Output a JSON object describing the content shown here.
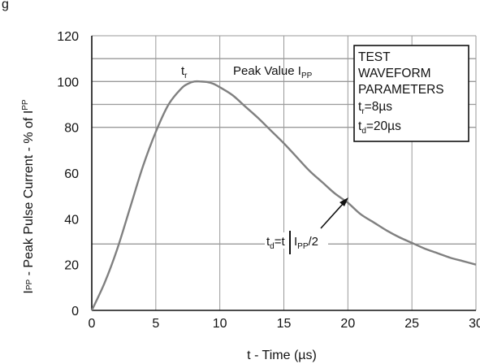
{
  "chart_data": {
    "type": "line",
    "title": "g",
    "xlabel": "t - Time (µs)",
    "ylabel": "IPP - Peak Pulse Current - % of IPP",
    "xlim": [
      0,
      30
    ],
    "ylim": [
      0,
      120
    ],
    "x_ticks": [
      "0",
      "5",
      "10",
      "15",
      "20",
      "25",
      "30"
    ],
    "y_ticks": [
      "0",
      "20",
      "40",
      "60",
      "80",
      "100",
      "120"
    ],
    "grid": true,
    "series": [
      {
        "name": "",
        "color": "#808080",
        "x": [
          0,
          1,
          2,
          3,
          4,
          5,
          6,
          7,
          7.5,
          8,
          8.5,
          9,
          9.5,
          10,
          11,
          12,
          13,
          14,
          15,
          16,
          17,
          18,
          19,
          20,
          21,
          22,
          23,
          24,
          25,
          26,
          27,
          28,
          29,
          30
        ],
        "y": [
          0,
          12,
          27,
          45,
          63,
          78,
          90,
          97,
          99,
          100,
          100,
          99.8,
          99,
          97.5,
          94,
          89,
          84,
          78.5,
          73,
          67,
          61,
          56,
          51,
          47,
          42,
          38.5,
          35,
          32,
          29.5,
          27,
          25,
          23,
          21.5,
          20
        ]
      }
    ],
    "reference_lines": [
      {
        "y": 110
      },
      {
        "y": 100
      },
      {
        "y": 90
      },
      {
        "y": 80
      },
      {
        "y": 29
      }
    ],
    "annotations": {
      "tr": {
        "main": "t",
        "sub": "r"
      },
      "peak_value": {
        "main": "Peak Value I",
        "sub": "PP"
      },
      "td": {
        "main": "t",
        "sub": "d",
        "rest": "=t",
        "ipp": "I",
        "ipp_sub": "PP",
        "ipp_rest": "/2"
      }
    },
    "legend_box": {
      "lines": [
        "TEST",
        "WAVEFORM",
        "PARAMETERS"
      ],
      "tr": {
        "main": "t",
        "sub": "r",
        "rest": "=8µs"
      },
      "td": {
        "main": "t",
        "sub": "d",
        "rest": "=20µs"
      }
    },
    "ylabel_parts": {
      "a": "I",
      "a_sub": "PP",
      "b": " - Peak Pulse Current - % of I",
      "b_sup": "PP"
    }
  }
}
